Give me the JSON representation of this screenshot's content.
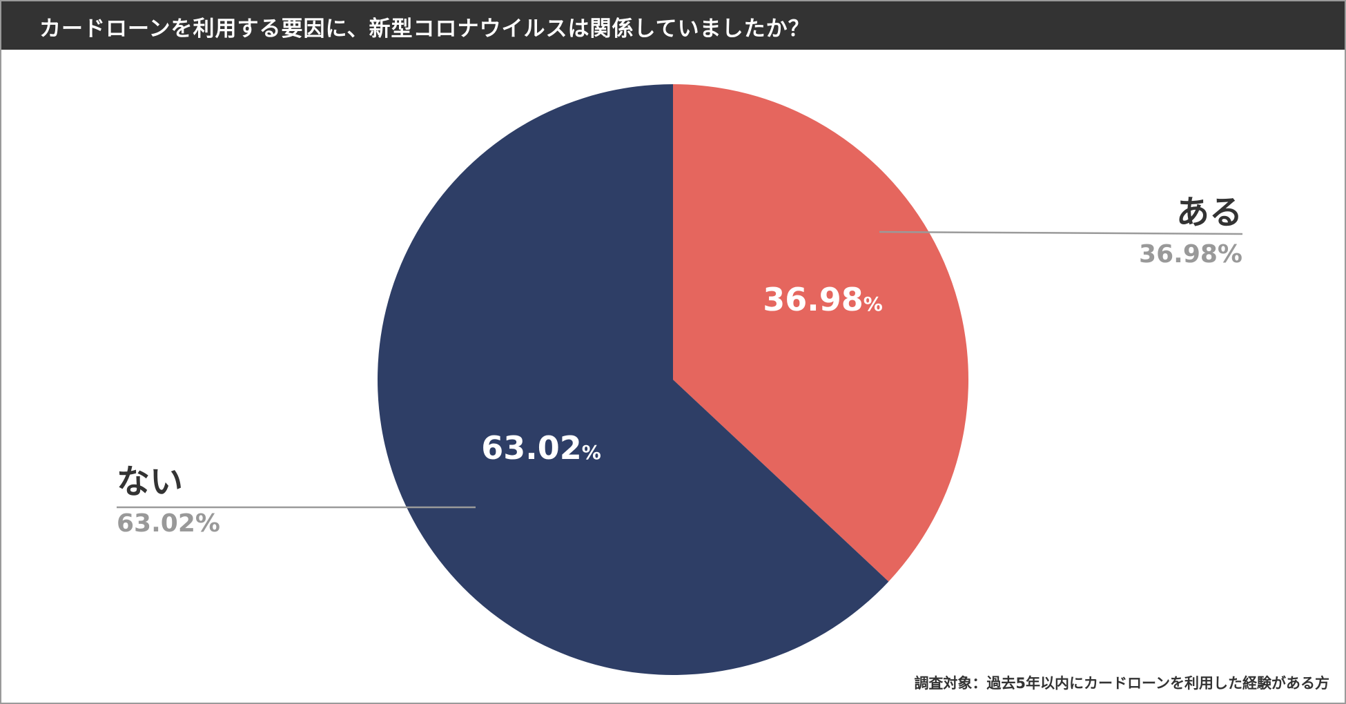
{
  "title": "カードローンを利用する要因に、新型コロナウイルスは関係していましたか？",
  "footnote": "調査対象：過去5年以内にカードローンを利用した経験がある方",
  "chart_data": {
    "type": "pie",
    "title": "カードローンを利用する要因に、新型コロナウイルスは関係していましたか？",
    "slices": [
      {
        "label": "ある",
        "value": 36.98,
        "display": "36.98",
        "unit": "%",
        "color": "#e5665e"
      },
      {
        "label": "ない",
        "value": 63.02,
        "display": "63.02",
        "unit": "%",
        "color": "#2e3e66"
      }
    ],
    "start_angle": "12 o'clock",
    "direction": "clockwise"
  },
  "colors": {
    "title_bar": "#333333",
    "callout_value": "#999999",
    "callout_label": "#333333",
    "leader_line": "#9a9a9a"
  }
}
